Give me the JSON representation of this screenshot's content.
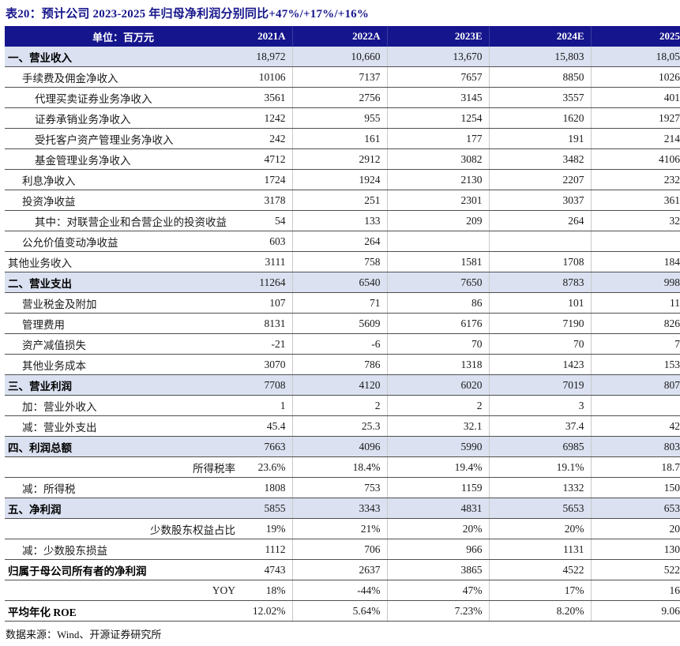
{
  "title": "表20：预计公司 2023-2025 年归母净利润分别同比+47%/+17%/+16%",
  "source": "数据来源：Wind、开源证券研究所",
  "colors": {
    "header_bg": "#15158D",
    "section_row_bg": "#DBE1F1",
    "title_color": "#16168C",
    "row_border": "#4f4f4f",
    "column_divider": "#c9c9c9"
  },
  "table": {
    "unit_header": "单位：百万元",
    "year_headers": [
      "2021A",
      "2022A",
      "2023E",
      "2024E",
      "2025"
    ],
    "rows": [
      {
        "label": "一、营业收入",
        "style": "section",
        "indent": 0,
        "values": [
          "18,972",
          "10,660",
          "13,670",
          "15,803",
          "18,05"
        ]
      },
      {
        "label": "手续费及佣金净收入",
        "style": "normal",
        "indent": 1,
        "values": [
          "10106",
          "7137",
          "7657",
          "8850",
          "1026"
        ]
      },
      {
        "label": "代理买卖证券业务净收入",
        "style": "normal",
        "indent": 2,
        "values": [
          "3561",
          "2756",
          "3145",
          "3557",
          "401"
        ]
      },
      {
        "label": "证券承销业务净收入",
        "style": "normal",
        "indent": 2,
        "values": [
          "1242",
          "955",
          "1254",
          "1620",
          "1927"
        ]
      },
      {
        "label": "受托客户资产管理业务净收入",
        "style": "normal",
        "indent": 2,
        "values": [
          "242",
          "161",
          "177",
          "191",
          "214"
        ]
      },
      {
        "label": "基金管理业务净收入",
        "style": "normal",
        "indent": 2,
        "values": [
          "4712",
          "2912",
          "3082",
          "3482",
          "4106"
        ]
      },
      {
        "label": "利息净收入",
        "style": "normal",
        "indent": 1,
        "values": [
          "1724",
          "1924",
          "2130",
          "2207",
          "232"
        ]
      },
      {
        "label": "投资净收益",
        "style": "normal",
        "indent": 1,
        "values": [
          "3178",
          "251",
          "2301",
          "3037",
          "361"
        ]
      },
      {
        "label": "其中：对联营企业和合营企业的投资收益",
        "style": "normal",
        "indent": 2,
        "values": [
          "54",
          "133",
          "209",
          "264",
          "32"
        ]
      },
      {
        "label": "公允价值变动净收益",
        "style": "normal",
        "indent": 1,
        "values": [
          "603",
          "264",
          "",
          "",
          ""
        ]
      },
      {
        "label": "其他业务收入",
        "style": "normal",
        "indent": 0,
        "values": [
          "3111",
          "758",
          "1581",
          "1708",
          "184"
        ]
      },
      {
        "label": "二、营业支出",
        "style": "section",
        "indent": 0,
        "values": [
          "11264",
          "6540",
          "7650",
          "8783",
          "998"
        ]
      },
      {
        "label": "营业税金及附加",
        "style": "normal",
        "indent": 1,
        "values": [
          "107",
          "71",
          "86",
          "101",
          "11"
        ]
      },
      {
        "label": "管理费用",
        "style": "normal",
        "indent": 1,
        "values": [
          "8131",
          "5609",
          "6176",
          "7190",
          "826"
        ]
      },
      {
        "label": "资产减值损失",
        "style": "normal",
        "indent": 1,
        "values": [
          "-21",
          "-6",
          "70",
          "70",
          "7"
        ]
      },
      {
        "label": "其他业务成本",
        "style": "normal",
        "indent": 1,
        "values": [
          "3070",
          "786",
          "1318",
          "1423",
          "153"
        ]
      },
      {
        "label": "三、营业利润",
        "style": "section",
        "indent": 0,
        "values": [
          "7708",
          "4120",
          "6020",
          "7019",
          "807"
        ]
      },
      {
        "label": "加：营业外收入",
        "style": "normal",
        "indent": 1,
        "values": [
          "1",
          "2",
          "2",
          "3",
          ""
        ]
      },
      {
        "label": "减：营业外支出",
        "style": "normal",
        "indent": 1,
        "values": [
          "45.4",
          "25.3",
          "32.1",
          "37.4",
          "42"
        ]
      },
      {
        "label": "四、利润总额",
        "style": "section",
        "indent": 0,
        "values": [
          "7663",
          "4096",
          "5990",
          "6985",
          "803"
        ]
      },
      {
        "label": "所得税率",
        "style": "rightlabel",
        "indent": 0,
        "values": [
          "23.6%",
          "18.4%",
          "19.4%",
          "19.1%",
          "18.7"
        ]
      },
      {
        "label": "减：所得税",
        "style": "normal",
        "indent": 1,
        "values": [
          "1808",
          "753",
          "1159",
          "1332",
          "150"
        ]
      },
      {
        "label": "五、净利润",
        "style": "section",
        "indent": 0,
        "values": [
          "5855",
          "3343",
          "4831",
          "5653",
          "653"
        ]
      },
      {
        "label": "少数股东权益占比",
        "style": "rightlabel",
        "indent": 0,
        "values": [
          "19%",
          "21%",
          "20%",
          "20%",
          "20"
        ]
      },
      {
        "label": "减：少数股东损益",
        "style": "normal",
        "indent": 1,
        "values": [
          "1112",
          "706",
          "966",
          "1131",
          "130"
        ]
      },
      {
        "label": "归属于母公司所有者的净利润",
        "style": "bold",
        "indent": 0,
        "values": [
          "4743",
          "2637",
          "3865",
          "4522",
          "522"
        ]
      },
      {
        "label": "YOY",
        "style": "rightlabel",
        "indent": 0,
        "values": [
          "18%",
          "-44%",
          "47%",
          "17%",
          "16"
        ]
      },
      {
        "label": "平均年化 ROE",
        "style": "bold",
        "indent": 0,
        "values": [
          "12.02%",
          "5.64%",
          "7.23%",
          "8.20%",
          "9.06"
        ]
      }
    ]
  }
}
